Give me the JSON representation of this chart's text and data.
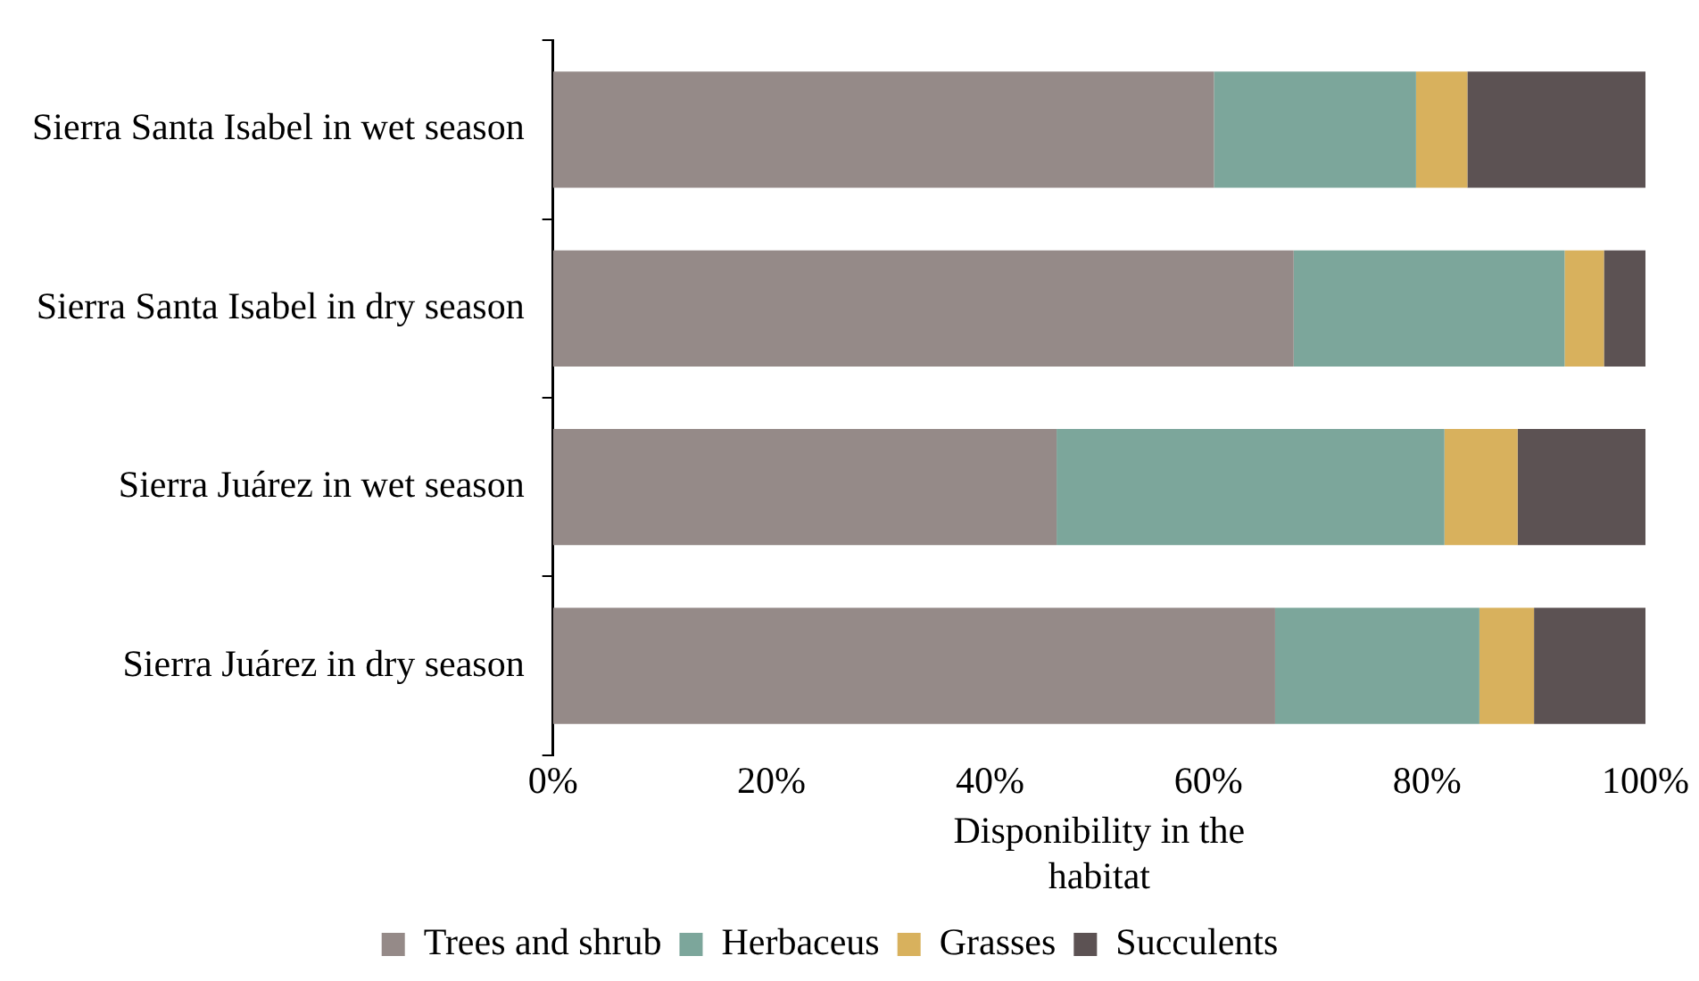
{
  "chart_data": {
    "type": "bar",
    "orientation": "horizontal",
    "stacked": true,
    "categories": [
      "Sierra Santa Isabel in wet season",
      "Sierra Santa Isabel in dry season",
      "Sierra Juárez in wet season",
      "Sierra Juárez in dry season"
    ],
    "series": [
      {
        "name": "Trees and shrub",
        "color": "#958a88",
        "values": [
          60.5,
          67.8,
          46.1,
          66.1
        ]
      },
      {
        "name": "Herbaceus",
        "color": "#7ca69b",
        "values": [
          18.5,
          24.8,
          35.5,
          18.7
        ]
      },
      {
        "name": "Grasses",
        "color": "#d8b15d",
        "values": [
          4.7,
          3.6,
          6.7,
          5.0
        ]
      },
      {
        "name": "Succulents",
        "color": "#5c5253",
        "values": [
          16.3,
          3.8,
          11.7,
          10.2
        ]
      }
    ],
    "xlim": [
      0,
      100
    ],
    "xticks": [
      {
        "value": 0,
        "label": "0%"
      },
      {
        "value": 20,
        "label": "20%"
      },
      {
        "value": 40,
        "label": "40%"
      },
      {
        "value": 60,
        "label": "60%"
      },
      {
        "value": 80,
        "label": "80%"
      },
      {
        "value": 100,
        "label": "100%"
      }
    ],
    "xlabel": "Disponibility in the habitat",
    "grid": false,
    "legend": "bottom"
  }
}
